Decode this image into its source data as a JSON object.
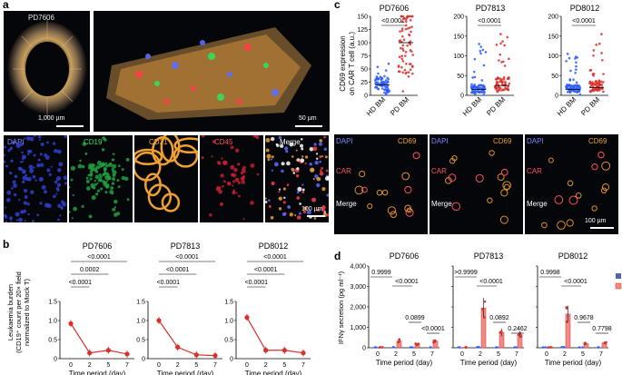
{
  "panel_labels": {
    "a": "a",
    "b": "b",
    "c": "c",
    "d": "d"
  },
  "colors": {
    "dapi": "#5b6cff",
    "cd19": "#2fe060",
    "cd31": "#f3a630",
    "cd45": "#ff3d4a",
    "cd69": "#f0a030",
    "car": "#ff5060",
    "red": "#d8302b",
    "blue": "#2a5cff",
    "mock": "#4f63b8",
    "car_bar": "#f08a84"
  },
  "panel_a": {
    "top_left": {
      "label": "PD7606",
      "scalebar": "1,000 µm"
    },
    "top_right": {
      "scalebar": "50 µm"
    },
    "tiles": [
      {
        "label": "DAPI",
        "color": "#7b86ff",
        "scalebar": ""
      },
      {
        "label": "CD19",
        "color": "#36e064",
        "scalebar": ""
      },
      {
        "label": "CD31",
        "color": "#f5a830",
        "scalebar": ""
      },
      {
        "label": "CD45",
        "color": "#ff4f5a",
        "scalebar": ""
      },
      {
        "label": "Merge",
        "color": "#ffffff",
        "scalebar": "100 µm"
      }
    ]
  },
  "panel_c": {
    "ylabel_lines": [
      "CD69 expression",
      "on CAR T cell (a.u.)"
    ],
    "charts": [
      {
        "title": "PD7606",
        "p": "<0.0001",
        "yticks": [
          "0",
          "25",
          "50",
          "75",
          "100",
          "125",
          "150"
        ]
      },
      {
        "title": "PD7813",
        "p": "<0.0001",
        "yticks": [
          "0",
          "50",
          "100",
          "150",
          "200"
        ]
      },
      {
        "title": "PD8012",
        "p": "<0.0001",
        "yticks": [
          "0",
          "50",
          "100",
          "150",
          "200"
        ]
      }
    ],
    "xcats": [
      "HD BM",
      "PD BM"
    ],
    "micro": {
      "cd69": "CD69",
      "dapi": "DAPI",
      "car": "CAR",
      "merge": "Merge",
      "scalebar": "100 µm"
    }
  },
  "panel_b": {
    "ylabel_lines": [
      "Leukaemia burden",
      "(CD19⁺ count per 20× field",
      "normalized to Mock T)"
    ],
    "xlabel": "Time period (day)",
    "xcats": [
      "0",
      "2",
      "5",
      "7"
    ],
    "yticks": [
      "0",
      "0.5",
      "1.0",
      "1.5"
    ],
    "charts": [
      {
        "title": "PD7606",
        "pvals": [
          "<0.0001",
          "0.0002",
          "<0.0001"
        ]
      },
      {
        "title": "PD7813",
        "pvals": [
          "<0.0001",
          "<0.0001",
          "<0.0001"
        ]
      },
      {
        "title": "PD8012",
        "pvals": [
          "<0.0001",
          "<0.0001",
          "<0.0001"
        ]
      }
    ]
  },
  "panel_d": {
    "ylabel": "IFNγ secretion (pg ml⁻¹)",
    "xlabel": "Time period (day)",
    "xcats": [
      "0",
      "2",
      "5",
      "7"
    ],
    "yticks": [
      "0",
      "1,000",
      "2,000",
      "3,000",
      "4,000"
    ],
    "legend": [
      "Mock",
      "CAR"
    ],
    "charts": [
      {
        "title": "PD7606",
        "pvals": [
          "0.9999",
          "<0.0001",
          "0.0899",
          "<0.0001"
        ]
      },
      {
        "title": "PD7813",
        "pvals": [
          ">0.9999",
          "<0.0001",
          "0.0892",
          "0.2462"
        ]
      },
      {
        "title": "PD8012",
        "pvals": [
          "0.9998",
          "<0.0001",
          "0.9678",
          "0.7798"
        ]
      }
    ]
  },
  "chart_data": [
    {
      "type": "scatter",
      "title": "PD7606",
      "ylabel": "CD69 expression on CAR T cell (a.u.)",
      "categories": [
        "HD BM",
        "PD BM"
      ],
      "ylim": [
        0,
        150
      ],
      "series": [
        {
          "name": "HD BM",
          "median": 20,
          "max": 60
        },
        {
          "name": "PD BM",
          "median": 100,
          "max": 150
        }
      ]
    },
    {
      "type": "scatter",
      "title": "PD7813",
      "ylabel": "CD69 expression on CAR T cell (a.u.)",
      "categories": [
        "HD BM",
        "PD BM"
      ],
      "ylim": [
        0,
        200
      ],
      "series": [
        {
          "name": "HD BM",
          "median": 15,
          "max": 130
        },
        {
          "name": "PD BM",
          "median": 25,
          "max": 155
        }
      ]
    },
    {
      "type": "scatter",
      "title": "PD8012",
      "ylabel": "CD69 expression on CAR T cell (a.u.)",
      "categories": [
        "HD BM",
        "PD BM"
      ],
      "ylim": [
        0,
        200
      ],
      "series": [
        {
          "name": "HD BM",
          "median": 15,
          "max": 105
        },
        {
          "name": "PD BM",
          "median": 20,
          "max": 155
        }
      ]
    },
    {
      "type": "line",
      "title": "PD7606",
      "xlabel": "Time period (day)",
      "ylabel": "Leukaemia burden (CD19⁺ count per 20× field normalized to Mock T)",
      "x": [
        0,
        2,
        5,
        7
      ],
      "ylim": [
        0,
        1.5
      ],
      "series": [
        {
          "values": [
            0.92,
            0.15,
            0.22,
            0.12
          ]
        }
      ]
    },
    {
      "type": "line",
      "title": "PD7813",
      "xlabel": "Time period (day)",
      "ylabel": "Leukaemia burden (CD19⁺ count per 20× field normalized to Mock T)",
      "x": [
        0,
        2,
        5,
        7
      ],
      "ylim": [
        0,
        1.5
      ],
      "series": [
        {
          "values": [
            1.0,
            0.3,
            0.1,
            0.08
          ]
        }
      ]
    },
    {
      "type": "line",
      "title": "PD8012",
      "xlabel": "Time period (day)",
      "ylabel": "Leukaemia burden (CD19⁺ count per 20× field normalized to Mock T)",
      "x": [
        0,
        2,
        5,
        7
      ],
      "ylim": [
        0,
        1.5
      ],
      "series": [
        {
          "values": [
            1.08,
            0.22,
            0.22,
            0.15
          ]
        }
      ]
    },
    {
      "type": "bar",
      "title": "PD7606",
      "xlabel": "Time period (day)",
      "ylabel": "IFNγ secretion (pg ml⁻¹)",
      "categories": [
        "0",
        "2",
        "5",
        "7"
      ],
      "ylim": [
        0,
        4000
      ],
      "series": [
        {
          "name": "Mock",
          "values": [
            20,
            30,
            20,
            20
          ]
        },
        {
          "name": "CAR",
          "values": [
            20,
            330,
            180,
            330
          ]
        }
      ]
    },
    {
      "type": "bar",
      "title": "PD7813",
      "xlabel": "Time period (day)",
      "ylabel": "IFNγ secretion (pg ml⁻¹)",
      "categories": [
        "0",
        "2",
        "5",
        "7"
      ],
      "ylim": [
        0,
        4000
      ],
      "series": [
        {
          "name": "Mock",
          "values": [
            20,
            30,
            20,
            20
          ]
        },
        {
          "name": "CAR",
          "values": [
            20,
            1950,
            750,
            650
          ]
        }
      ]
    },
    {
      "type": "bar",
      "title": "PD8012",
      "xlabel": "Time period (day)",
      "ylabel": "IFNγ secretion (pg ml⁻¹)",
      "categories": [
        "0",
        "2",
        "5",
        "7"
      ],
      "ylim": [
        0,
        4000
      ],
      "series": [
        {
          "name": "Mock",
          "values": [
            20,
            30,
            20,
            20
          ]
        },
        {
          "name": "CAR",
          "values": [
            20,
            1650,
            200,
            240
          ]
        }
      ]
    }
  ]
}
